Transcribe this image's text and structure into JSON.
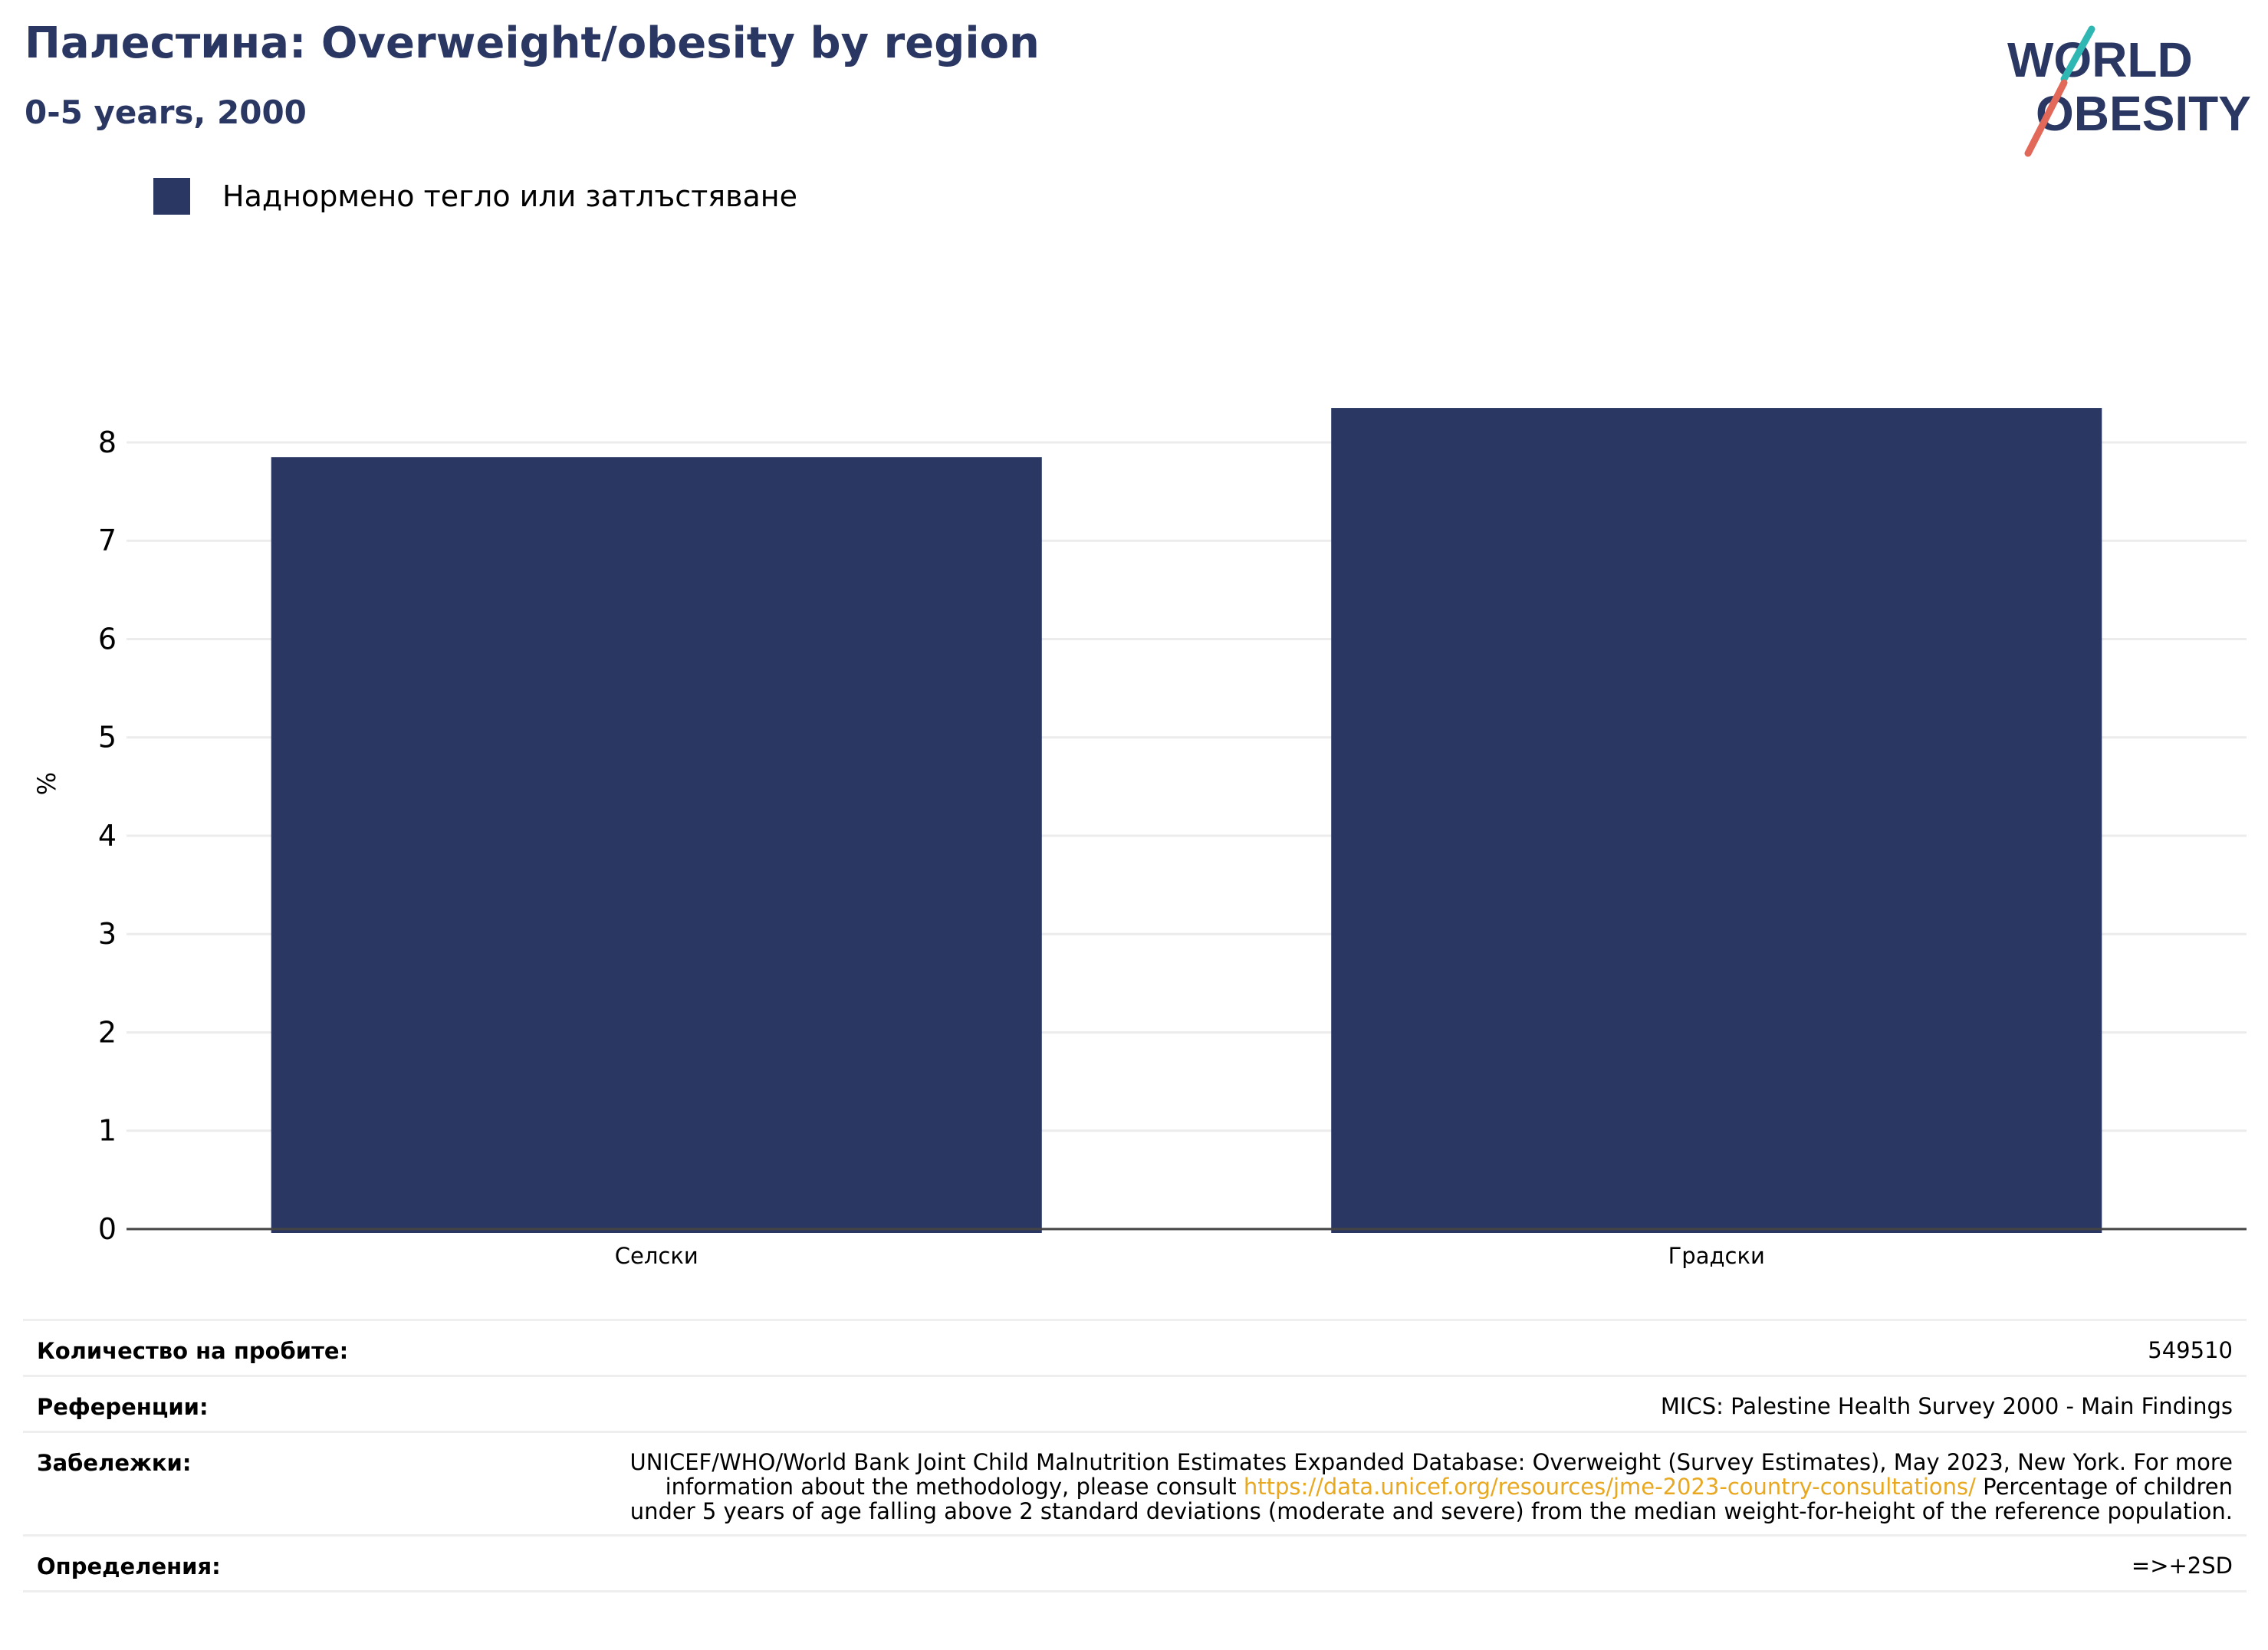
{
  "header": {
    "title": "Палестина: Overweight/obesity by region",
    "subtitle": "0-5 years, 2000"
  },
  "logo": {
    "line1": "WORLD",
    "line2": "OBESITY"
  },
  "legend": {
    "label": "Наднормено тегло или затлъстяване",
    "color": "#2a3763"
  },
  "chart_data": {
    "type": "bar",
    "categories": [
      "Селски",
      "Градски"
    ],
    "series": [
      {
        "name": "Наднормено тегло или затлъстяване",
        "values": [
          7.85,
          8.35
        ],
        "color": "#2a3763"
      }
    ],
    "ylabel": "%",
    "xlabel": "",
    "ylim": [
      0,
      8.6
    ],
    "yticks": [
      0,
      1,
      2,
      3,
      4,
      5,
      6,
      7,
      8
    ],
    "grid": true,
    "legend_position": "top-left"
  },
  "footer": {
    "sample_label": "Количество на пробите:",
    "sample_value": "549510",
    "references_label": "Референции:",
    "references_value": "MICS: Palestine Health Survey 2000 - Main Findings",
    "notes_label": "Забележки:",
    "notes_text_1": "UNICEF/WHO/World Bank Joint Child Malnutrition Estimates Expanded Database: Overweight (Survey Estimates), May 2023, New York. For more information about the methodology, please consult",
    "notes_link": "https://data.unicef.org/resources/jme-2023-country-consultations/",
    "notes_text_2": "Percentage of children under 5 years of age falling above 2 standard deviations (moderate and severe) from the median weight-for-height of the reference population.",
    "definitions_label": "Определения:",
    "definitions_value": "=>+2SD"
  }
}
